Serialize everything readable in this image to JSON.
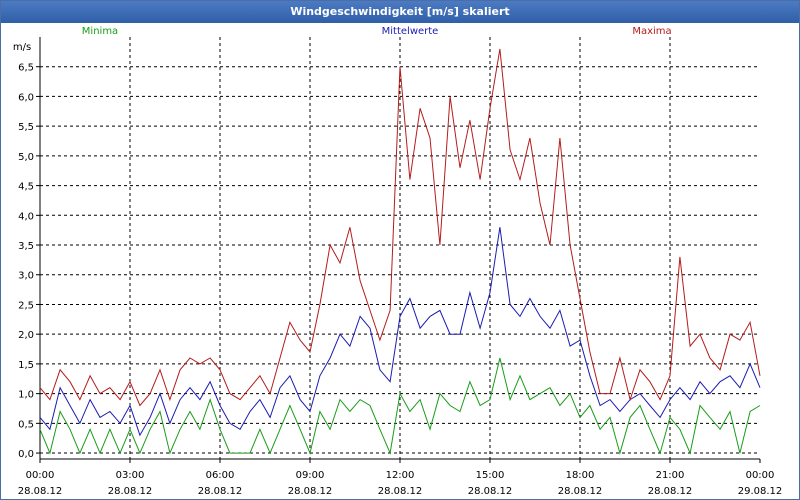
{
  "window": {
    "title": "Windgeschwindigkeit [m/s] skaliert"
  },
  "chart_data": {
    "type": "line",
    "title": "Windgeschwindigkeit [m/s] skaliert",
    "ylabel": "m/s",
    "xlabel": "",
    "ylim": [
      -0.1,
      7.0
    ],
    "xlim": [
      0,
      24
    ],
    "grid": true,
    "yticks": [
      "0,0",
      "0,5",
      "1,0",
      "1,5",
      "2,0",
      "2,5",
      "3,0",
      "3,5",
      "4,0",
      "4,5",
      "5,0",
      "5,5",
      "6,0",
      "6,5"
    ],
    "xticks": [
      {
        "time": "00:00",
        "date": "28.08.12"
      },
      {
        "time": "03:00",
        "date": "28.08.12"
      },
      {
        "time": "06:00",
        "date": "28.08.12"
      },
      {
        "time": "09:00",
        "date": "28.08.12"
      },
      {
        "time": "12:00",
        "date": "28.08.12"
      },
      {
        "time": "15:00",
        "date": "28.08.12"
      },
      {
        "time": "18:00",
        "date": "28.08.12"
      },
      {
        "time": "21:00",
        "date": "28.08.12"
      },
      {
        "time": "00:00",
        "date": "29.08.12"
      }
    ],
    "series": [
      {
        "name": "Minima",
        "color": "#1a9c1a",
        "x": [
          0,
          0.33,
          0.67,
          1,
          1.33,
          1.67,
          2,
          2.33,
          2.67,
          3,
          3.33,
          3.67,
          4,
          4.33,
          4.67,
          5,
          5.33,
          5.67,
          6,
          6.33,
          6.67,
          7,
          7.33,
          7.67,
          8,
          8.33,
          8.67,
          9,
          9.33,
          9.67,
          10,
          10.33,
          10.67,
          11,
          11.33,
          11.67,
          12,
          12.33,
          12.67,
          13,
          13.33,
          13.67,
          14,
          14.33,
          14.67,
          15,
          15.33,
          15.67,
          16,
          16.33,
          16.67,
          17,
          17.33,
          17.67,
          18,
          18.33,
          18.67,
          19,
          19.33,
          19.67,
          20,
          20.33,
          20.67,
          21,
          21.33,
          21.67,
          22,
          22.33,
          22.67,
          23,
          23.33,
          23.67,
          24
        ],
        "values": [
          0.4,
          0.0,
          0.7,
          0.4,
          0.0,
          0.4,
          0.0,
          0.4,
          0.0,
          0.4,
          0.0,
          0.4,
          0.7,
          0.0,
          0.4,
          0.7,
          0.4,
          0.9,
          0.4,
          0.0,
          0.0,
          0.0,
          0.4,
          0.0,
          0.4,
          0.8,
          0.4,
          0.0,
          0.7,
          0.4,
          0.9,
          0.7,
          0.9,
          0.8,
          0.4,
          0.0,
          1.0,
          0.7,
          0.9,
          0.4,
          1.0,
          0.8,
          0.7,
          1.2,
          0.8,
          0.9,
          1.6,
          0.9,
          1.3,
          0.9,
          1.0,
          1.1,
          0.8,
          1.0,
          0.6,
          0.8,
          0.4,
          0.6,
          0.0,
          0.6,
          0.8,
          0.4,
          0.0,
          0.6,
          0.4,
          0.0,
          0.8,
          0.6,
          0.4,
          0.7,
          0.0,
          0.7,
          0.8
        ]
      },
      {
        "name": "Mittelwerte",
        "color": "#1c1cb4",
        "x": [
          0,
          0.33,
          0.67,
          1,
          1.33,
          1.67,
          2,
          2.33,
          2.67,
          3,
          3.33,
          3.67,
          4,
          4.33,
          4.67,
          5,
          5.33,
          5.67,
          6,
          6.33,
          6.67,
          7,
          7.33,
          7.67,
          8,
          8.33,
          8.67,
          9,
          9.33,
          9.67,
          10,
          10.33,
          10.67,
          11,
          11.33,
          11.67,
          12,
          12.33,
          12.67,
          13,
          13.33,
          13.67,
          14,
          14.33,
          14.67,
          15,
          15.33,
          15.67,
          16,
          16.33,
          16.67,
          17,
          17.33,
          17.67,
          18,
          18.33,
          18.67,
          19,
          19.33,
          19.67,
          20,
          20.33,
          20.67,
          21,
          21.33,
          21.67,
          22,
          22.33,
          22.67,
          23,
          23.33,
          23.67,
          24
        ],
        "values": [
          0.6,
          0.4,
          1.1,
          0.8,
          0.5,
          0.9,
          0.6,
          0.7,
          0.5,
          0.8,
          0.3,
          0.6,
          1.0,
          0.5,
          0.9,
          1.1,
          0.9,
          1.2,
          0.8,
          0.5,
          0.4,
          0.7,
          0.9,
          0.6,
          1.1,
          1.3,
          0.9,
          0.7,
          1.3,
          1.6,
          2.0,
          1.8,
          2.3,
          2.1,
          1.4,
          1.2,
          2.3,
          2.6,
          2.1,
          2.3,
          2.4,
          2.0,
          2.0,
          2.7,
          2.1,
          2.7,
          3.8,
          2.5,
          2.3,
          2.6,
          2.3,
          2.1,
          2.4,
          1.8,
          1.9,
          1.3,
          0.8,
          0.9,
          0.7,
          0.9,
          1.0,
          0.8,
          0.6,
          0.9,
          1.1,
          0.9,
          1.2,
          1.0,
          1.2,
          1.3,
          1.1,
          1.5,
          1.1
        ]
      },
      {
        "name": "Maxima",
        "color": "#b41c1c",
        "x": [
          0,
          0.33,
          0.67,
          1,
          1.33,
          1.67,
          2,
          2.33,
          2.67,
          3,
          3.33,
          3.67,
          4,
          4.33,
          4.67,
          5,
          5.33,
          5.67,
          6,
          6.33,
          6.67,
          7,
          7.33,
          7.67,
          8,
          8.33,
          8.67,
          9,
          9.33,
          9.67,
          10,
          10.33,
          10.67,
          11,
          11.33,
          11.67,
          12,
          12.33,
          12.67,
          13,
          13.33,
          13.67,
          14,
          14.33,
          14.67,
          15,
          15.33,
          15.67,
          16,
          16.33,
          16.67,
          17,
          17.33,
          17.67,
          18,
          18.33,
          18.67,
          19,
          19.33,
          19.67,
          20,
          20.33,
          20.67,
          21,
          21.33,
          21.67,
          22,
          22.33,
          22.67,
          23,
          23.33,
          23.67,
          24
        ],
        "values": [
          1.1,
          0.9,
          1.4,
          1.2,
          0.9,
          1.3,
          1.0,
          1.1,
          0.9,
          1.2,
          0.8,
          1.0,
          1.4,
          0.9,
          1.4,
          1.6,
          1.5,
          1.6,
          1.4,
          1.0,
          0.9,
          1.1,
          1.3,
          1.0,
          1.6,
          2.2,
          1.9,
          1.7,
          2.5,
          3.5,
          3.2,
          3.8,
          2.9,
          2.4,
          1.9,
          2.4,
          6.5,
          4.6,
          5.8,
          5.3,
          3.5,
          6.0,
          4.8,
          5.6,
          4.6,
          5.8,
          6.8,
          5.1,
          4.6,
          5.3,
          4.2,
          3.5,
          5.3,
          3.5,
          2.6,
          1.7,
          1.0,
          1.0,
          1.6,
          0.9,
          1.4,
          1.2,
          0.9,
          1.3,
          3.3,
          1.8,
          2.0,
          1.6,
          1.4,
          2.0,
          1.9,
          2.2,
          1.3
        ]
      }
    ]
  }
}
